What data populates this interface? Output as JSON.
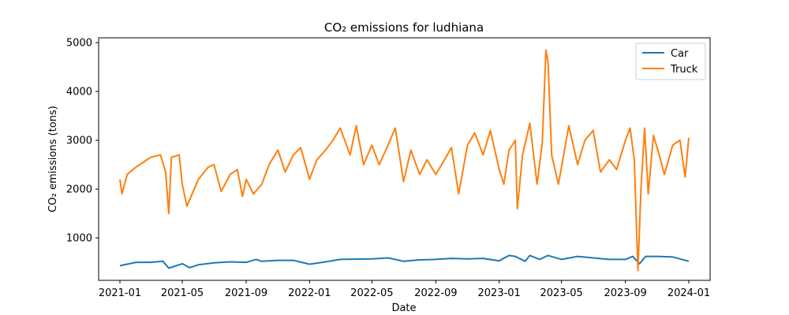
{
  "chart_data": {
    "type": "line",
    "title": "CO₂ emissions for ludhiana",
    "xlabel": "Date",
    "ylabel": "CO₂ emissions (tons)",
    "x_ticks": [
      "2021-01",
      "2021-05",
      "2021-09",
      "2022-01",
      "2022-05",
      "2022-09",
      "2023-01",
      "2023-05",
      "2023-09",
      "2024-01"
    ],
    "y_ticks": [
      1000,
      2000,
      3000,
      4000,
      5000
    ],
    "xlim": [
      "2020-11-21",
      "2024-02-11"
    ],
    "ylim": [
      130,
      5100
    ],
    "legend_position": "top-right",
    "grid": false,
    "series": [
      {
        "name": "Car",
        "color": "#1f77b4",
        "points": [
          [
            "2021-01-01",
            430
          ],
          [
            "2021-02-01",
            500
          ],
          [
            "2021-03-01",
            500
          ],
          [
            "2021-03-25",
            520
          ],
          [
            "2021-04-05",
            380
          ],
          [
            "2021-05-01",
            470
          ],
          [
            "2021-05-15",
            390
          ],
          [
            "2021-06-01",
            450
          ],
          [
            "2021-07-01",
            490
          ],
          [
            "2021-08-01",
            510
          ],
          [
            "2021-09-01",
            500
          ],
          [
            "2021-09-20",
            560
          ],
          [
            "2021-10-01",
            520
          ],
          [
            "2021-11-01",
            540
          ],
          [
            "2021-12-01",
            540
          ],
          [
            "2022-01-01",
            460
          ],
          [
            "2022-02-01",
            510
          ],
          [
            "2022-03-01",
            560
          ],
          [
            "2022-05-01",
            570
          ],
          [
            "2022-06-01",
            590
          ],
          [
            "2022-07-01",
            520
          ],
          [
            "2022-08-01",
            550
          ],
          [
            "2022-09-01",
            560
          ],
          [
            "2022-10-01",
            580
          ],
          [
            "2022-11-01",
            570
          ],
          [
            "2022-12-01",
            580
          ],
          [
            "2023-01-01",
            530
          ],
          [
            "2023-01-20",
            640
          ],
          [
            "2023-02-01",
            620
          ],
          [
            "2023-02-20",
            520
          ],
          [
            "2023-03-01",
            640
          ],
          [
            "2023-03-20",
            560
          ],
          [
            "2023-04-05",
            640
          ],
          [
            "2023-05-01",
            560
          ],
          [
            "2023-06-01",
            620
          ],
          [
            "2023-07-01",
            590
          ],
          [
            "2023-08-01",
            560
          ],
          [
            "2023-09-01",
            560
          ],
          [
            "2023-09-15",
            620
          ],
          [
            "2023-09-28",
            470
          ],
          [
            "2023-10-10",
            620
          ],
          [
            "2023-11-01",
            620
          ],
          [
            "2023-12-01",
            610
          ],
          [
            "2024-01-01",
            520
          ]
        ]
      },
      {
        "name": "Truck",
        "color": "#ff7f0e",
        "points": [
          [
            "2021-01-01",
            2200
          ],
          [
            "2021-01-05",
            1900
          ],
          [
            "2021-01-15",
            2300
          ],
          [
            "2021-02-01",
            2450
          ],
          [
            "2021-02-15",
            2550
          ],
          [
            "2021-03-01",
            2650
          ],
          [
            "2021-03-20",
            2700
          ],
          [
            "2021-03-30",
            2350
          ],
          [
            "2021-04-05",
            1500
          ],
          [
            "2021-04-10",
            2650
          ],
          [
            "2021-04-25",
            2700
          ],
          [
            "2021-05-01",
            2100
          ],
          [
            "2021-05-10",
            1650
          ],
          [
            "2021-05-20",
            1900
          ],
          [
            "2021-06-01",
            2200
          ],
          [
            "2021-06-20",
            2450
          ],
          [
            "2021-07-01",
            2500
          ],
          [
            "2021-07-15",
            1950
          ],
          [
            "2021-08-01",
            2300
          ],
          [
            "2021-08-15",
            2400
          ],
          [
            "2021-08-25",
            1850
          ],
          [
            "2021-09-01",
            2200
          ],
          [
            "2021-09-15",
            1900
          ],
          [
            "2021-10-01",
            2100
          ],
          [
            "2021-10-15",
            2500
          ],
          [
            "2021-11-01",
            2800
          ],
          [
            "2021-11-15",
            2350
          ],
          [
            "2021-12-01",
            2700
          ],
          [
            "2021-12-15",
            2850
          ],
          [
            "2022-01-01",
            2200
          ],
          [
            "2022-01-15",
            2600
          ],
          [
            "2022-02-01",
            2800
          ],
          [
            "2022-02-15",
            3000
          ],
          [
            "2022-03-01",
            3250
          ],
          [
            "2022-03-20",
            2700
          ],
          [
            "2022-04-01",
            3300
          ],
          [
            "2022-04-15",
            2500
          ],
          [
            "2022-05-01",
            2900
          ],
          [
            "2022-05-15",
            2500
          ],
          [
            "2022-06-01",
            2900
          ],
          [
            "2022-06-15",
            3250
          ],
          [
            "2022-07-01",
            2150
          ],
          [
            "2022-07-15",
            2800
          ],
          [
            "2022-08-01",
            2300
          ],
          [
            "2022-08-15",
            2600
          ],
          [
            "2022-09-01",
            2300
          ],
          [
            "2022-09-15",
            2550
          ],
          [
            "2022-10-01",
            2850
          ],
          [
            "2022-10-15",
            1900
          ],
          [
            "2022-11-01",
            2900
          ],
          [
            "2022-11-15",
            3150
          ],
          [
            "2022-12-01",
            2700
          ],
          [
            "2022-12-15",
            3200
          ],
          [
            "2023-01-01",
            2400
          ],
          [
            "2023-01-10",
            2100
          ],
          [
            "2023-01-20",
            2800
          ],
          [
            "2023-02-01",
            3000
          ],
          [
            "2023-02-05",
            1600
          ],
          [
            "2023-02-15",
            2700
          ],
          [
            "2023-03-01",
            3350
          ],
          [
            "2023-03-15",
            2100
          ],
          [
            "2023-03-25",
            2950
          ],
          [
            "2023-04-01",
            4850
          ],
          [
            "2023-04-05",
            4600
          ],
          [
            "2023-04-12",
            2700
          ],
          [
            "2023-04-25",
            2100
          ],
          [
            "2023-05-01",
            2450
          ],
          [
            "2023-05-15",
            3300
          ],
          [
            "2023-06-01",
            2500
          ],
          [
            "2023-06-15",
            3000
          ],
          [
            "2023-07-01",
            3200
          ],
          [
            "2023-07-15",
            2350
          ],
          [
            "2023-08-01",
            2600
          ],
          [
            "2023-08-15",
            2400
          ],
          [
            "2023-09-01",
            3000
          ],
          [
            "2023-09-10",
            3250
          ],
          [
            "2023-09-18",
            2600
          ],
          [
            "2023-09-25",
            330
          ],
          [
            "2023-10-01",
            2000
          ],
          [
            "2023-10-08",
            3250
          ],
          [
            "2023-10-15",
            1900
          ],
          [
            "2023-10-25",
            3100
          ],
          [
            "2023-11-05",
            2700
          ],
          [
            "2023-11-15",
            2300
          ],
          [
            "2023-12-01",
            2900
          ],
          [
            "2023-12-15",
            3000
          ],
          [
            "2023-12-25",
            2250
          ],
          [
            "2024-01-01",
            3050
          ]
        ]
      }
    ]
  }
}
